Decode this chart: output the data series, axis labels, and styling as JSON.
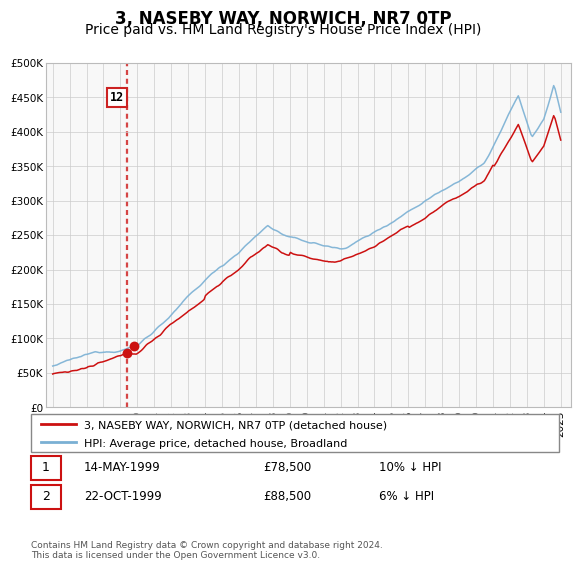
{
  "title": "3, NASEBY WAY, NORWICH, NR7 0TP",
  "subtitle": "Price paid vs. HM Land Registry's House Price Index (HPI)",
  "title_fontsize": 12,
  "subtitle_fontsize": 10,
  "bg_color": "#ffffff",
  "grid_color": "#cccccc",
  "plot_bg_color": "#f8f8f8",
  "hpi_color": "#7ab0d4",
  "price_color": "#cc1111",
  "ylim": [
    0,
    500000
  ],
  "yticks": [
    0,
    50000,
    100000,
    150000,
    200000,
    250000,
    300000,
    350000,
    400000,
    450000,
    500000
  ],
  "sale1_date_label": "14-MAY-1999",
  "sale1_price": 78500,
  "sale1_hpi_price": 87200,
  "sale1_pct": "10%",
  "sale2_date_label": "22-OCT-1999",
  "sale2_price": 88500,
  "sale2_hpi_price": 94200,
  "sale2_pct": "6%",
  "legend_line1": "3, NASEBY WAY, NORWICH, NR7 0TP (detached house)",
  "legend_line2": "HPI: Average price, detached house, Broadland",
  "footer": "Contains HM Land Registry data © Crown copyright and database right 2024.\nThis data is licensed under the Open Government Licence v3.0.",
  "sale1_year": 1999.37,
  "sale2_year": 1999.79
}
